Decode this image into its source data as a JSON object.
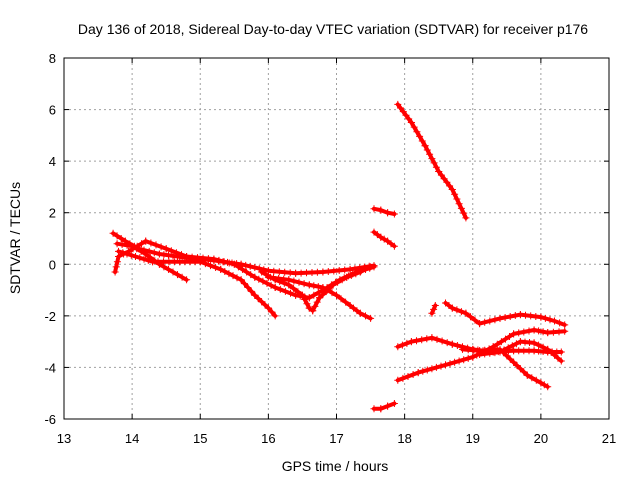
{
  "chart_data": {
    "type": "scatter",
    "title": "Day 136 of 2018, Sidereal Day-to-day VTEC variation (SDTVAR) for receiver p176",
    "xlabel": "GPS time / hours",
    "ylabel": "SDTVAR / TECUs",
    "xlim": [
      13,
      21
    ],
    "ylim": [
      -6,
      8
    ],
    "xticks": [
      "13",
      "14",
      "15",
      "16",
      "17",
      "18",
      "19",
      "20",
      "21"
    ],
    "yticks": [
      "-6",
      "-4",
      "-2",
      "0",
      "2",
      "4",
      "6",
      "8"
    ],
    "grid": true,
    "marker": "plus",
    "color": "#ff0000",
    "series": [
      {
        "name": "s1",
        "points": [
          [
            13.72,
            1.2
          ],
          [
            13.9,
            0.9
          ],
          [
            14.1,
            0.6
          ],
          [
            14.4,
            0.4
          ],
          [
            14.8,
            0.25
          ],
          [
            15.2,
            0.15
          ],
          [
            15.6,
            0.0
          ],
          [
            16.0,
            -0.25
          ],
          [
            16.4,
            -0.35
          ],
          [
            16.8,
            -0.3
          ],
          [
            17.2,
            -0.2
          ],
          [
            17.55,
            -0.05
          ]
        ]
      },
      {
        "name": "s2",
        "points": [
          [
            13.75,
            -0.3
          ],
          [
            13.8,
            0.3
          ],
          [
            13.95,
            0.5
          ],
          [
            14.2,
            0.9
          ],
          [
            14.5,
            0.6
          ],
          [
            14.8,
            0.3
          ],
          [
            15.2,
            0.2
          ],
          [
            15.5,
            0.0
          ],
          [
            15.8,
            -0.5
          ],
          [
            16.1,
            -0.9
          ],
          [
            16.4,
            -1.2
          ],
          [
            16.6,
            -1.3
          ],
          [
            16.8,
            -1.0
          ],
          [
            17.05,
            -0.6
          ],
          [
            17.3,
            -0.3
          ],
          [
            17.55,
            -0.1
          ]
        ]
      },
      {
        "name": "s3",
        "points": [
          [
            13.78,
            0.8
          ],
          [
            14.0,
            0.7
          ],
          [
            14.2,
            0.4
          ],
          [
            14.4,
            0.0
          ],
          [
            14.6,
            -0.3
          ],
          [
            14.8,
            -0.6
          ]
        ]
      },
      {
        "name": "s4",
        "points": [
          [
            13.8,
            0.5
          ],
          [
            14.05,
            0.3
          ],
          [
            14.3,
            0.1
          ],
          [
            14.7,
            0.1
          ],
          [
            15.0,
            0.1
          ],
          [
            15.3,
            -0.2
          ],
          [
            15.6,
            -0.6
          ],
          [
            15.8,
            -1.2
          ],
          [
            16.0,
            -1.7
          ],
          [
            16.1,
            -2.0
          ]
        ]
      },
      {
        "name": "s5",
        "points": [
          [
            15.9,
            -0.3
          ],
          [
            16.1,
            -0.6
          ],
          [
            16.3,
            -0.8
          ],
          [
            16.5,
            -1.2
          ],
          [
            16.6,
            -1.7
          ],
          [
            16.65,
            -1.8
          ],
          [
            16.75,
            -1.3
          ],
          [
            16.95,
            -0.8
          ],
          [
            17.15,
            -0.5
          ],
          [
            17.35,
            -0.3
          ],
          [
            17.5,
            -0.1
          ]
        ]
      },
      {
        "name": "s6",
        "points": [
          [
            16.0,
            -0.5
          ],
          [
            16.3,
            -0.6
          ],
          [
            16.6,
            -0.8
          ],
          [
            16.8,
            -0.9
          ],
          [
            17.0,
            -1.2
          ],
          [
            17.2,
            -1.6
          ],
          [
            17.35,
            -1.9
          ],
          [
            17.5,
            -2.1
          ]
        ]
      },
      {
        "name": "s7",
        "points": [
          [
            17.55,
            2.15
          ],
          [
            17.65,
            2.1
          ],
          [
            17.75,
            2.0
          ],
          [
            17.85,
            1.95
          ]
        ]
      },
      {
        "name": "s8",
        "points": [
          [
            17.55,
            1.25
          ],
          [
            17.65,
            1.05
          ],
          [
            17.75,
            0.9
          ],
          [
            17.85,
            0.7
          ]
        ]
      },
      {
        "name": "s9",
        "points": [
          [
            17.55,
            -5.6
          ],
          [
            17.65,
            -5.6
          ],
          [
            17.75,
            -5.5
          ],
          [
            17.85,
            -5.4
          ]
        ]
      },
      {
        "name": "s10",
        "points": [
          [
            17.9,
            6.2
          ],
          [
            18.1,
            5.5
          ],
          [
            18.3,
            4.6
          ],
          [
            18.5,
            3.6
          ],
          [
            18.7,
            2.9
          ],
          [
            18.9,
            1.8
          ]
        ]
      },
      {
        "name": "s11",
        "points": [
          [
            17.9,
            -3.2
          ],
          [
            18.1,
            -3.0
          ],
          [
            18.4,
            -2.85
          ],
          [
            18.7,
            -3.1
          ],
          [
            19.0,
            -3.3
          ],
          [
            19.3,
            -3.4
          ],
          [
            19.6,
            -3.35
          ],
          [
            19.9,
            -3.35
          ],
          [
            20.1,
            -3.4
          ],
          [
            20.3,
            -3.4
          ]
        ]
      },
      {
        "name": "s12",
        "points": [
          [
            17.9,
            -4.5
          ],
          [
            18.2,
            -4.2
          ],
          [
            18.6,
            -3.9
          ],
          [
            19.0,
            -3.6
          ],
          [
            19.3,
            -3.2
          ],
          [
            19.6,
            -2.7
          ],
          [
            19.9,
            -2.55
          ],
          [
            20.1,
            -2.65
          ],
          [
            20.35,
            -2.6
          ]
        ]
      },
      {
        "name": "s13",
        "points": [
          [
            18.6,
            -1.5
          ],
          [
            18.7,
            -1.7
          ],
          [
            18.9,
            -1.9
          ],
          [
            19.1,
            -2.3
          ],
          [
            19.4,
            -2.1
          ],
          [
            19.7,
            -1.95
          ],
          [
            20.0,
            -2.05
          ],
          [
            20.2,
            -2.2
          ],
          [
            20.35,
            -2.35
          ]
        ]
      },
      {
        "name": "s14",
        "points": [
          [
            18.85,
            -3.3
          ],
          [
            19.1,
            -3.35
          ],
          [
            19.4,
            -3.3
          ],
          [
            19.6,
            -3.8
          ],
          [
            19.8,
            -4.3
          ],
          [
            20.0,
            -4.6
          ],
          [
            20.1,
            -4.75
          ]
        ]
      },
      {
        "name": "s15",
        "points": [
          [
            19.1,
            -3.5
          ],
          [
            19.4,
            -3.4
          ],
          [
            19.7,
            -3.0
          ],
          [
            19.9,
            -3.05
          ],
          [
            20.1,
            -3.3
          ],
          [
            20.3,
            -3.75
          ]
        ]
      },
      {
        "name": "s16",
        "points": [
          [
            18.4,
            -1.9
          ],
          [
            18.45,
            -1.6
          ]
        ]
      }
    ]
  }
}
